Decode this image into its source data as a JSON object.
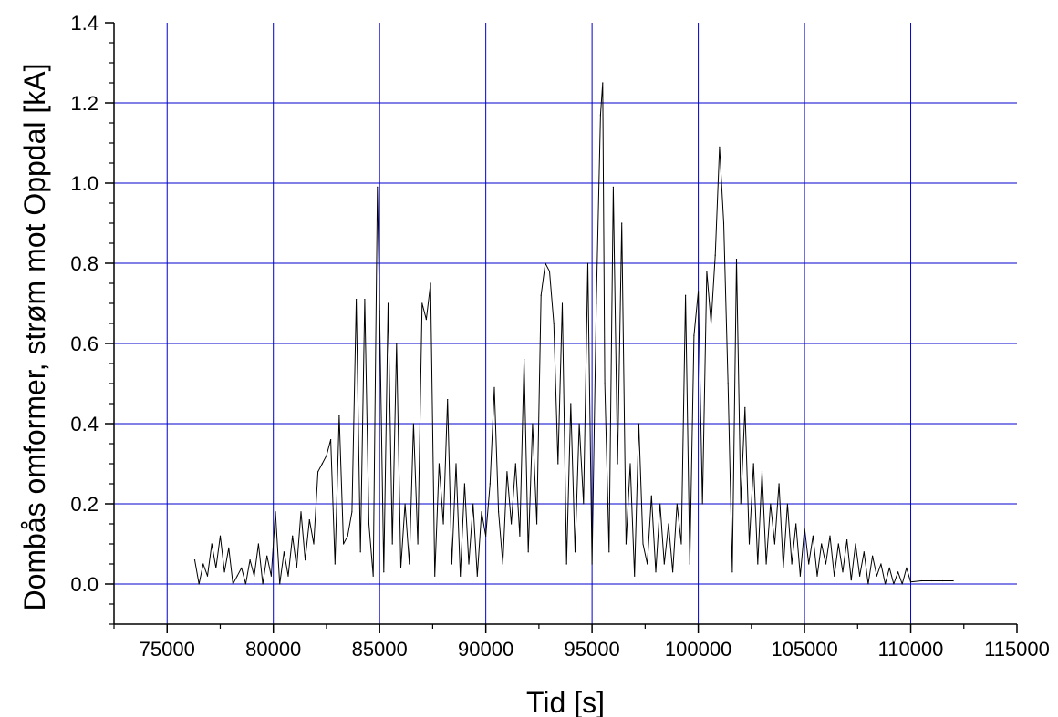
{
  "chart_data": {
    "type": "line",
    "title": "",
    "xlabel": "Tid [s]",
    "ylabel": "Dombås omformer, strøm mot Oppdal [kA]",
    "xlim": [
      72500,
      115000
    ],
    "ylim": [
      -0.1,
      1.4
    ],
    "x_ticks": [
      75000,
      80000,
      85000,
      90000,
      95000,
      100000,
      105000,
      110000,
      115000
    ],
    "x_tick_labels": [
      "75000",
      "80000",
      "85000",
      "90000",
      "95000",
      "100000",
      "105000",
      "110000",
      "115000"
    ],
    "y_ticks": [
      0.0,
      0.2,
      0.4,
      0.6,
      0.8,
      1.0,
      1.2,
      1.4
    ],
    "y_tick_labels": [
      "0.0",
      "0.2",
      "0.4",
      "0.6",
      "0.8",
      "1.0",
      "1.2",
      "1.4"
    ],
    "grid": true,
    "grid_color": "#0000cc",
    "line_color": "#000000",
    "series": [
      {
        "x": [
          76300,
          76500,
          76700,
          76900,
          77100,
          77300,
          77500,
          77700,
          77900,
          78100,
          78300,
          78500,
          78700,
          78900,
          79100,
          79300,
          79500,
          79700,
          79900,
          80100,
          80300,
          80500,
          80700,
          80900,
          81100,
          81300,
          81500,
          81700,
          81900,
          82100,
          82300,
          82500,
          82700,
          82900,
          83100,
          83300,
          83500,
          83700,
          83900,
          84100,
          84300,
          84500,
          84700,
          84900,
          85000,
          85200,
          85400,
          85600,
          85800,
          86000,
          86200,
          86400,
          86600,
          86800,
          87000,
          87200,
          87400,
          87600,
          87800,
          88000,
          88200,
          88400,
          88600,
          88800,
          89000,
          89200,
          89400,
          89600,
          89800,
          90000,
          90200,
          90400,
          90600,
          90800,
          91000,
          91200,
          91400,
          91600,
          91800,
          92000,
          92200,
          92400,
          92600,
          92800,
          93000,
          93200,
          93400,
          93600,
          93800,
          94000,
          94200,
          94400,
          94600,
          94800,
          95000,
          95200,
          95400,
          95500,
          95600,
          95800,
          96000,
          96200,
          96400,
          96600,
          96800,
          97000,
          97200,
          97400,
          97600,
          97800,
          98000,
          98200,
          98400,
          98600,
          98800,
          99000,
          99200,
          99400,
          99600,
          99800,
          100000,
          100200,
          100400,
          100600,
          100800,
          101000,
          101200,
          101400,
          101600,
          101800,
          102000,
          102200,
          102400,
          102600,
          102800,
          103000,
          103200,
          103400,
          103600,
          103800,
          104000,
          104200,
          104400,
          104600,
          104800,
          105000,
          105200,
          105400,
          105600,
          105800,
          106000,
          106200,
          106400,
          106600,
          106800,
          107000,
          107200,
          107400,
          107600,
          107800,
          108000,
          108200,
          108400,
          108600,
          108800,
          109000,
          109200,
          109400,
          109600,
          109800,
          110000,
          110500,
          111000,
          111500,
          112000
        ],
        "values": [
          0.06,
          0.0,
          0.05,
          0.02,
          0.1,
          0.04,
          0.12,
          0.03,
          0.09,
          0.0,
          0.02,
          0.04,
          0.0,
          0.06,
          0.02,
          0.1,
          0.0,
          0.07,
          0.02,
          0.18,
          0.0,
          0.08,
          0.02,
          0.12,
          0.04,
          0.18,
          0.06,
          0.16,
          0.1,
          0.28,
          0.3,
          0.32,
          0.36,
          0.05,
          0.42,
          0.1,
          0.12,
          0.18,
          0.71,
          0.08,
          0.71,
          0.15,
          0.02,
          0.99,
          0.68,
          0.03,
          0.7,
          0.1,
          0.6,
          0.04,
          0.2,
          0.05,
          0.4,
          0.1,
          0.7,
          0.66,
          0.75,
          0.02,
          0.3,
          0.15,
          0.46,
          0.05,
          0.3,
          0.02,
          0.25,
          0.05,
          0.2,
          0.02,
          0.18,
          0.12,
          0.25,
          0.49,
          0.18,
          0.05,
          0.28,
          0.15,
          0.3,
          0.12,
          0.56,
          0.08,
          0.4,
          0.15,
          0.72,
          0.8,
          0.78,
          0.65,
          0.3,
          0.7,
          0.05,
          0.45,
          0.08,
          0.4,
          0.2,
          0.8,
          0.05,
          0.7,
          1.17,
          1.25,
          0.5,
          0.08,
          0.99,
          0.3,
          0.9,
          0.1,
          0.3,
          0.02,
          0.4,
          0.1,
          0.05,
          0.22,
          0.03,
          0.2,
          0.05,
          0.15,
          0.03,
          0.2,
          0.1,
          0.72,
          0.05,
          0.62,
          0.73,
          0.2,
          0.78,
          0.65,
          0.82,
          1.09,
          0.9,
          0.5,
          0.03,
          0.81,
          0.2,
          0.44,
          0.1,
          0.3,
          0.05,
          0.28,
          0.05,
          0.2,
          0.1,
          0.25,
          0.04,
          0.2,
          0.05,
          0.15,
          0.02,
          0.14,
          0.05,
          0.12,
          0.02,
          0.1,
          0.05,
          0.12,
          0.02,
          0.1,
          0.03,
          0.11,
          0.01,
          0.1,
          0.02,
          0.08,
          0.0,
          0.07,
          0.02,
          0.05,
          0.0,
          0.04,
          0.0,
          0.03,
          0.0,
          0.04,
          0.005,
          0.008,
          0.008,
          0.008,
          0.008
        ]
      }
    ]
  }
}
